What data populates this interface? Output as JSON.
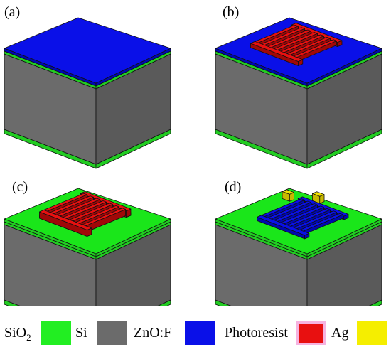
{
  "panels": [
    {
      "label": "(a)"
    },
    {
      "label": "(b)"
    },
    {
      "label": "(c)"
    },
    {
      "label": "(d)"
    }
  ],
  "legend": [
    {
      "name": "SiO",
      "sub": "2",
      "color": "#22ee22"
    },
    {
      "name": "Si",
      "color": "#6b6b6b"
    },
    {
      "name": "ZnO:F",
      "color": "#0a10e8"
    },
    {
      "name": "Photoresist",
      "color": "#e81010"
    },
    {
      "name": "Ag",
      "color": "#f5ee00"
    }
  ],
  "colors": {
    "sio2_top": "#1ae61a",
    "sio2_side": "#22cc22",
    "si_left": "#6b6b6b",
    "si_right": "#5a5a5a",
    "zno_top": "#0a10e8",
    "zno_side": "#0008b0",
    "resist": "#e81010",
    "resist_side": "#a00808",
    "ag": "#f0e000"
  }
}
